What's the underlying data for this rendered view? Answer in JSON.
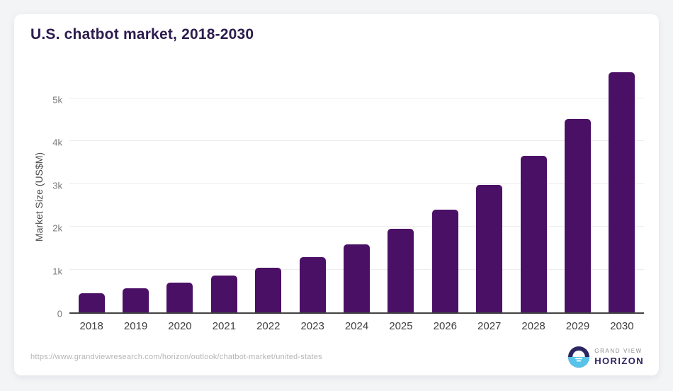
{
  "chart_data": {
    "type": "bar",
    "title": "U.S. chatbot market, 2018-2030",
    "categories": [
      "2018",
      "2019",
      "2020",
      "2021",
      "2022",
      "2023",
      "2024",
      "2025",
      "2026",
      "2027",
      "2028",
      "2029",
      "2030"
    ],
    "values": [
      450,
      560,
      690,
      860,
      1050,
      1290,
      1590,
      1950,
      2400,
      2970,
      3660,
      4520,
      5610
    ],
    "xlabel": "",
    "ylabel": "Market Size (US$M)",
    "yticks": [
      {
        "value": 0,
        "label": "0"
      },
      {
        "value": 1000,
        "label": "1k"
      },
      {
        "value": 2000,
        "label": "2k"
      },
      {
        "value": 3000,
        "label": "3k"
      },
      {
        "value": 4000,
        "label": "4k"
      },
      {
        "value": 5000,
        "label": "5k"
      }
    ],
    "ylim": [
      0,
      5790
    ],
    "grid": "horizontal",
    "legend": "none",
    "bar_color": "#4a1066"
  },
  "footer": {
    "source_url": "https://www.grandviewresearch.com/horizon/outlook/chatbot-market/united-states",
    "logo": {
      "top": "GRAND VIEW",
      "bottom": "HORIZON"
    }
  },
  "colors": {
    "page_background": "#f3f4f6",
    "card_background": "#ffffff",
    "title": "#2d1b4e",
    "bar": "#4a1066",
    "axis_line": "#424242",
    "gridline": "#ededed",
    "tick_label": "#7b7b7b",
    "x_label": "#3f3f3f",
    "url": "#b5b5b5",
    "logo_dark": "#2b2562",
    "logo_blue": "#56c3e9"
  }
}
